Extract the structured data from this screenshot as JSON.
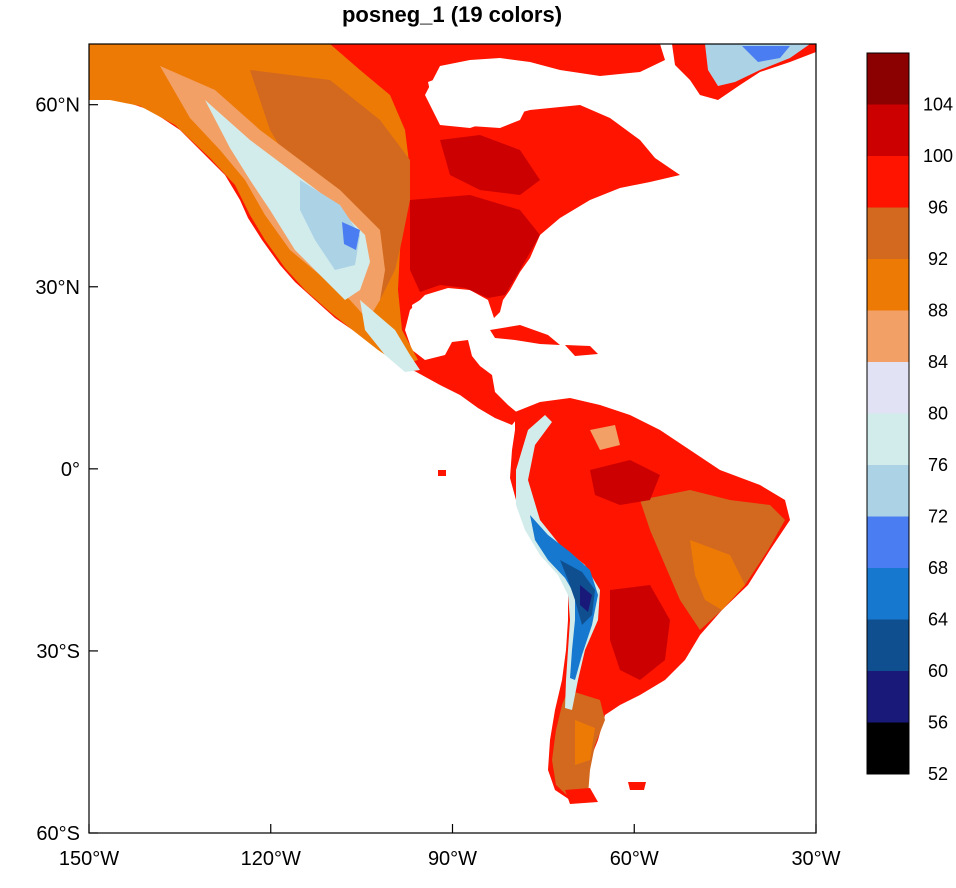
{
  "title": "posneg_1 (19 colors)",
  "map": {
    "projection": "cylindrical-equidistant",
    "lon_range": [
      -150,
      -30
    ],
    "lat_range": [
      -60,
      70
    ],
    "lon_ticks": [
      {
        "value": -150,
        "label": "150°W"
      },
      {
        "value": -120,
        "label": "120°W"
      },
      {
        "value": -90,
        "label": "90°W"
      },
      {
        "value": -60,
        "label": "60°W"
      },
      {
        "value": -30,
        "label": "30°W"
      }
    ],
    "lat_ticks": [
      {
        "value": 60,
        "label": "60°N"
      },
      {
        "value": 30,
        "label": "30°N"
      },
      {
        "value": 0,
        "label": "0°"
      },
      {
        "value": -30,
        "label": "30°S"
      },
      {
        "value": -60,
        "label": "60°S"
      }
    ],
    "ocean_color": "#ffffff"
  },
  "colorbar": {
    "labels": [
      "52",
      "56",
      "60",
      "64",
      "68",
      "72",
      "76",
      "80",
      "84",
      "88",
      "92",
      "96",
      "100",
      "104"
    ],
    "colors": [
      "#000000",
      "#19197a",
      "#0f4f8f",
      "#1778cf",
      "#4a7cf2",
      "#acd2e6",
      "#d2ecec",
      "#e2e2f5",
      "#f3a066",
      "#ee7a06",
      "#d2691e",
      "#ff1400",
      "#cc0000",
      "#8b0000"
    ]
  }
}
